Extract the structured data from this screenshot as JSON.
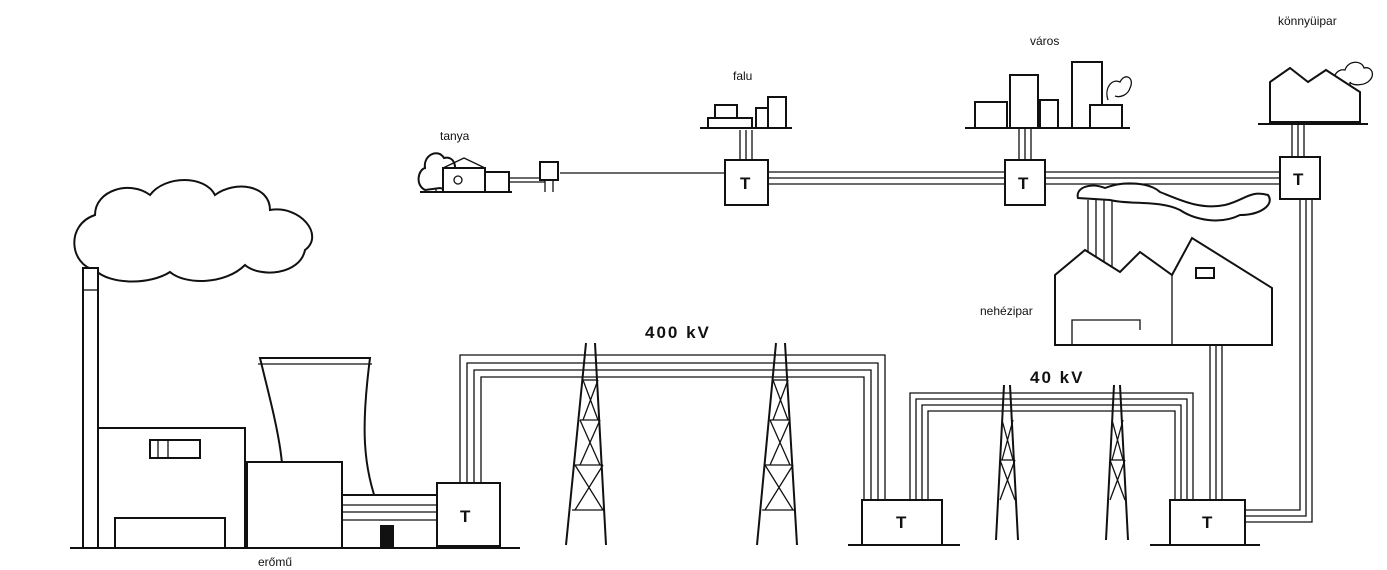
{
  "labels": {
    "tanya": "tanya",
    "falu": "falu",
    "varos": "város",
    "konnyuipar": "könnyüipar",
    "nehezipar": "nehézipar",
    "eromu": "erőmű",
    "v400": "400 kV",
    "v40": "40 kV"
  },
  "transformer_label": "T",
  "colors": {
    "ink": "#111111",
    "paper": "#ffffff"
  }
}
